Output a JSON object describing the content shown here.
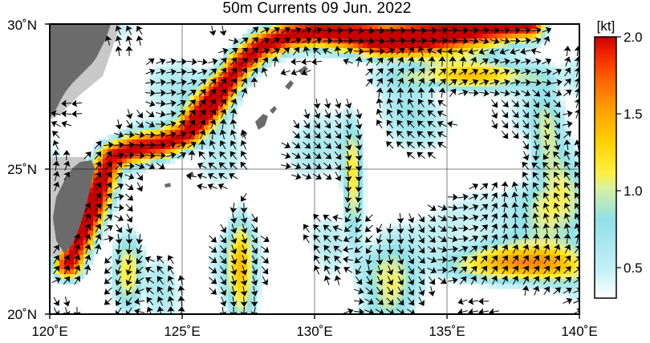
{
  "title": "50m Currents  09 Jun. 2022",
  "map": {
    "lon_range": [
      120,
      140
    ],
    "lat_range": [
      20,
      30
    ],
    "graticule_step_deg": 5,
    "gridlines": true,
    "lon_labels": [
      "120˚E",
      "125˚E",
      "130˚E",
      "135˚E",
      "140˚E"
    ],
    "lat_labels": [
      "20˚N",
      "25˚N",
      "30˚N"
    ]
  },
  "colorbar": {
    "unit": "[kt]",
    "tick_labels": [
      "0.5",
      "1.0",
      "1.5",
      "2.0"
    ],
    "range": [
      0.3,
      2.0
    ],
    "colors": [
      "#ffffff",
      "#b8eef4",
      "#8ee0e8",
      "#f6f060",
      "#ffd400",
      "#ffa000",
      "#ff5a00",
      "#e81e00",
      "#c80000"
    ]
  },
  "colors": {
    "land": "#6b6b6b",
    "shelf": "#c8c8c8",
    "ocean": "#ffffff",
    "arrows": "#000000",
    "grid": "#000000"
  }
}
